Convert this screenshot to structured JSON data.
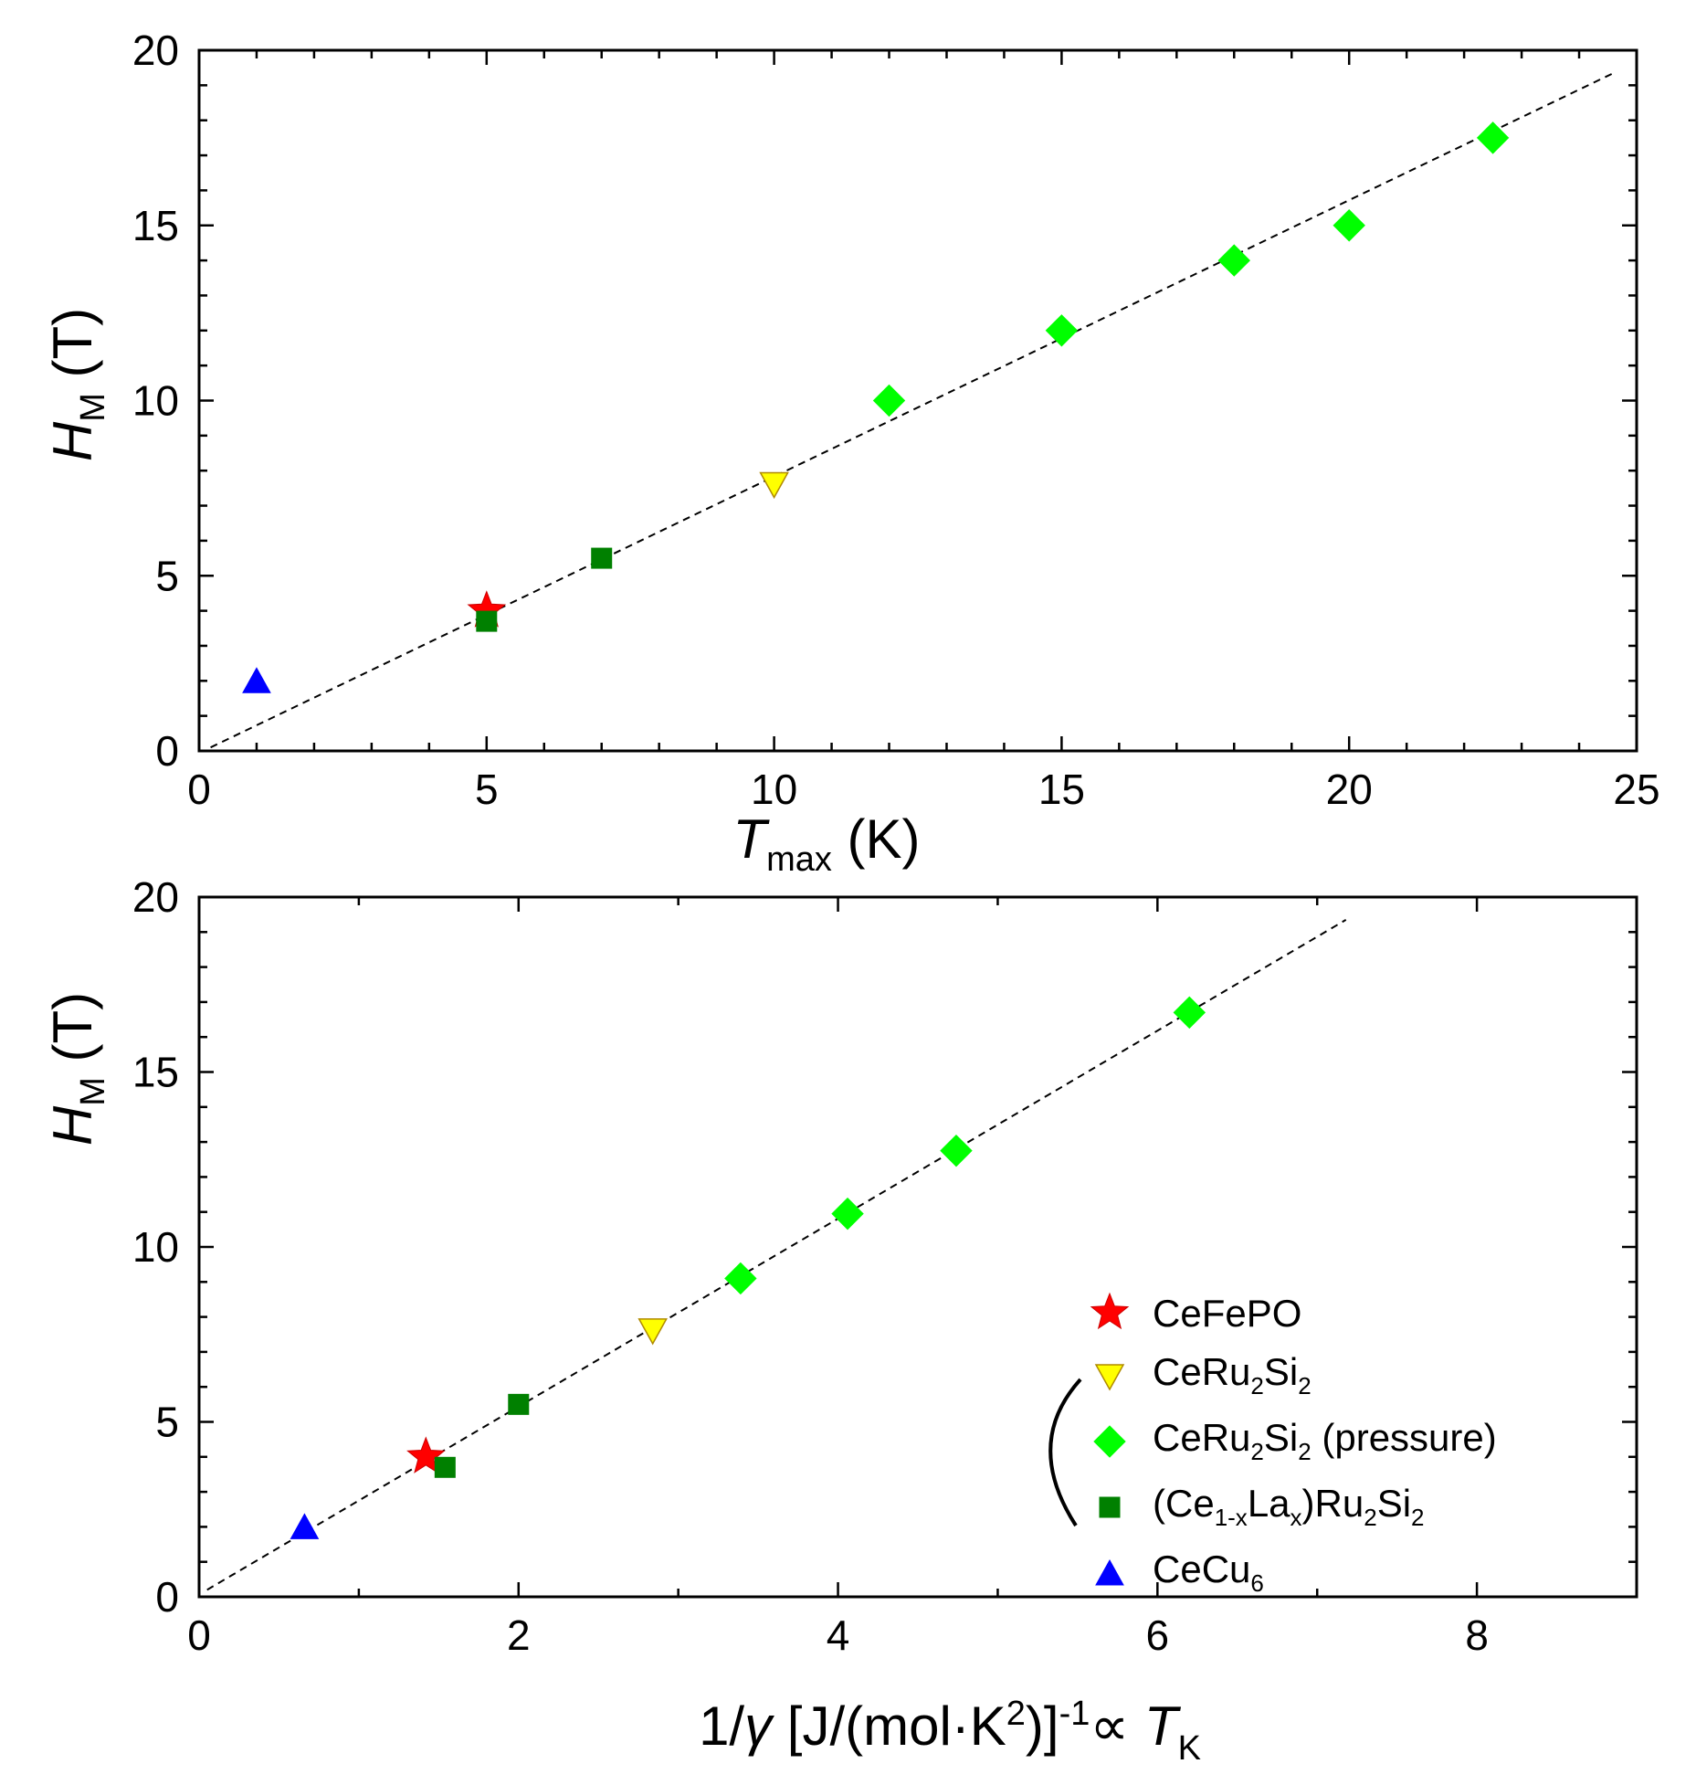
{
  "colors": {
    "cefepo": "#ff0000",
    "ceru2si2": "#ffff00",
    "ceru2si2_pressure": "#00ff00",
    "cela": "#008000",
    "cecu6": "#0000ff",
    "fit_line": "#000000"
  },
  "legend": {
    "cefepo": "CeFePO",
    "ceru2si2": {
      "a": "CeRu",
      "sub1": "2",
      "b": "Si",
      "sub2": "2"
    },
    "ceru2si2_pressure": {
      "a": "CeRu",
      "sub1": "2",
      "b": "Si",
      "sub2": "2",
      "c": " (pressure)"
    },
    "cela": {
      "a": "(Ce",
      "sub1": "1-x",
      "b": "La",
      "sub2": "x",
      "c": ")Ru",
      "sub3": "2",
      "d": "Si",
      "sub4": "2"
    },
    "cecu6": {
      "a": "CeCu",
      "sub1": "6"
    }
  },
  "chart_data": [
    {
      "type": "scatter",
      "xlabel": {
        "main": "T",
        "sub": "max",
        "unit": " (K)"
      },
      "ylabel": {
        "main": "H",
        "sub": "M",
        "unit": " (T)"
      },
      "xlim": [
        0,
        25
      ],
      "ylim": [
        0,
        20
      ],
      "x_ticks": [
        0,
        5,
        10,
        15,
        20,
        25
      ],
      "y_ticks": [
        0,
        5,
        10,
        15,
        20
      ],
      "series": [
        {
          "key": "cefepo",
          "marker": "star",
          "points": [
            [
              5.0,
              4.0
            ]
          ]
        },
        {
          "key": "ceru2si2",
          "marker": "triangle-down",
          "points": [
            [
              10.0,
              7.6
            ]
          ]
        },
        {
          "key": "ceru2si2_pressure",
          "marker": "diamond",
          "points": [
            [
              12.0,
              10.0
            ],
            [
              15.0,
              12.0
            ],
            [
              18.0,
              14.0
            ],
            [
              20.0,
              15.0
            ],
            [
              22.5,
              17.5
            ]
          ]
        },
        {
          "key": "cela",
          "marker": "square",
          "points": [
            [
              5.0,
              3.7
            ],
            [
              7.0,
              5.5
            ]
          ]
        },
        {
          "key": "cecu6",
          "marker": "triangle-up",
          "points": [
            [
              1.0,
              2.0
            ]
          ]
        }
      ],
      "fit_line": [
        [
          0.2,
          0.1
        ],
        [
          24.6,
          19.35
        ]
      ]
    },
    {
      "type": "scatter",
      "xlabel": {
        "a": "1/",
        "gamma": "γ",
        "b": " [J/(mol·K",
        "sup2": "2",
        "c": ")]",
        "sup": "-1",
        "d": "∝ ",
        "T": "T",
        "sub": "K"
      },
      "ylabel": {
        "main": "H",
        "sub": "M",
        "unit": " (T)"
      },
      "xlim": [
        0,
        9
      ],
      "ylim": [
        0,
        20
      ],
      "x_ticks": [
        0,
        2,
        4,
        6,
        8
      ],
      "y_ticks": [
        0,
        5,
        10,
        15,
        20
      ],
      "series": [
        {
          "key": "cefepo",
          "marker": "star",
          "points": [
            [
              1.42,
              4.0
            ]
          ]
        },
        {
          "key": "ceru2si2",
          "marker": "triangle-down",
          "points": [
            [
              2.84,
              7.6
            ]
          ]
        },
        {
          "key": "ceru2si2_pressure",
          "marker": "diamond",
          "points": [
            [
              3.39,
              9.1
            ],
            [
              4.06,
              10.95
            ],
            [
              4.74,
              12.75
            ],
            [
              6.2,
              16.7
            ]
          ]
        },
        {
          "key": "cela",
          "marker": "square",
          "points": [
            [
              1.54,
              3.7
            ],
            [
              2.0,
              5.5
            ]
          ]
        },
        {
          "key": "cecu6",
          "marker": "triangle-up",
          "points": [
            [
              0.66,
              2.0
            ]
          ]
        }
      ],
      "fit_line": [
        [
          0.05,
          0.2
        ],
        [
          7.18,
          19.35
        ]
      ]
    }
  ]
}
